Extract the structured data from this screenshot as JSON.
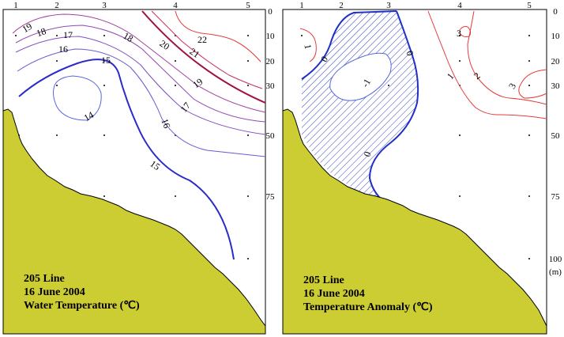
{
  "colors": {
    "terrain": "#cccc33",
    "iso_15": "#2b2bcc",
    "iso_warm": "#a01040",
    "anom_pos": "#e53b3b",
    "anom_zero": "#1f2fc8",
    "hatch": "#3344bb"
  },
  "stations": [
    "1",
    "2",
    "3",
    "4",
    "5"
  ],
  "depths": [
    "0",
    "10",
    "20",
    "30",
    "50",
    "75",
    "100",
    "(m)"
  ],
  "panels": [
    {
      "contour_labels": [
        "19",
        "18",
        "17",
        "16",
        "15",
        "14",
        "18",
        "20",
        "21",
        "22",
        "19",
        "17",
        "16",
        "15"
      ],
      "caption": [
        "205 Line",
        "16 June 2004",
        "Water Temperature (℃)"
      ]
    },
    {
      "contour_labels": [
        "1",
        "0",
        "-1",
        "0",
        "0",
        "3",
        "1",
        "2",
        "3"
      ],
      "caption": [
        "205 Line",
        "16 June 2004",
        "Temperature Anomaly (℃)"
      ]
    }
  ]
}
